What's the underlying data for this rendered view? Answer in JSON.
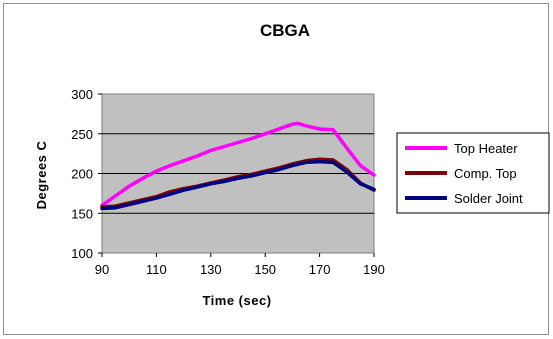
{
  "chart_data": {
    "type": "line",
    "title": "CBGA",
    "xlabel": "Time (sec)",
    "ylabel": "Degrees C",
    "xlim": [
      90,
      190
    ],
    "ylim": [
      100,
      300
    ],
    "x_ticks": [
      90,
      110,
      130,
      150,
      170,
      190
    ],
    "y_ticks": [
      100,
      150,
      200,
      250,
      300
    ],
    "grid": "horizontal",
    "legend_position": "right",
    "plot_background": "#c0c0c0",
    "series": [
      {
        "name": "Top Heater",
        "color": "#ff00ff",
        "x": [
          90,
          95,
          100,
          105,
          110,
          115,
          120,
          125,
          130,
          135,
          140,
          145,
          150,
          155,
          160,
          162,
          165,
          170,
          175,
          180,
          185,
          190
        ],
        "y": [
          160,
          172,
          184,
          194,
          203,
          210,
          216,
          222,
          229,
          234,
          239,
          244,
          250,
          256,
          262,
          263,
          260,
          256,
          255,
          232,
          210,
          198
        ]
      },
      {
        "name": "Comp. Top",
        "color": "#800000",
        "x": [
          90,
          95,
          100,
          105,
          110,
          115,
          120,
          125,
          130,
          135,
          140,
          145,
          150,
          155,
          160,
          165,
          170,
          175,
          180,
          185,
          190
        ],
        "y": [
          158,
          159,
          163,
          167,
          171,
          177,
          181,
          184,
          188,
          192,
          196,
          199,
          203,
          207,
          212,
          216,
          218,
          217,
          205,
          188,
          179
        ]
      },
      {
        "name": "Solder Joint",
        "color": "#000080",
        "x": [
          90,
          95,
          100,
          105,
          110,
          115,
          120,
          125,
          130,
          135,
          140,
          145,
          150,
          155,
          160,
          165,
          170,
          175,
          180,
          185,
          190
        ],
        "y": [
          156,
          157,
          161,
          165,
          169,
          174,
          179,
          183,
          187,
          190,
          194,
          197,
          201,
          205,
          210,
          214,
          215,
          214,
          202,
          187,
          180
        ]
      }
    ]
  }
}
